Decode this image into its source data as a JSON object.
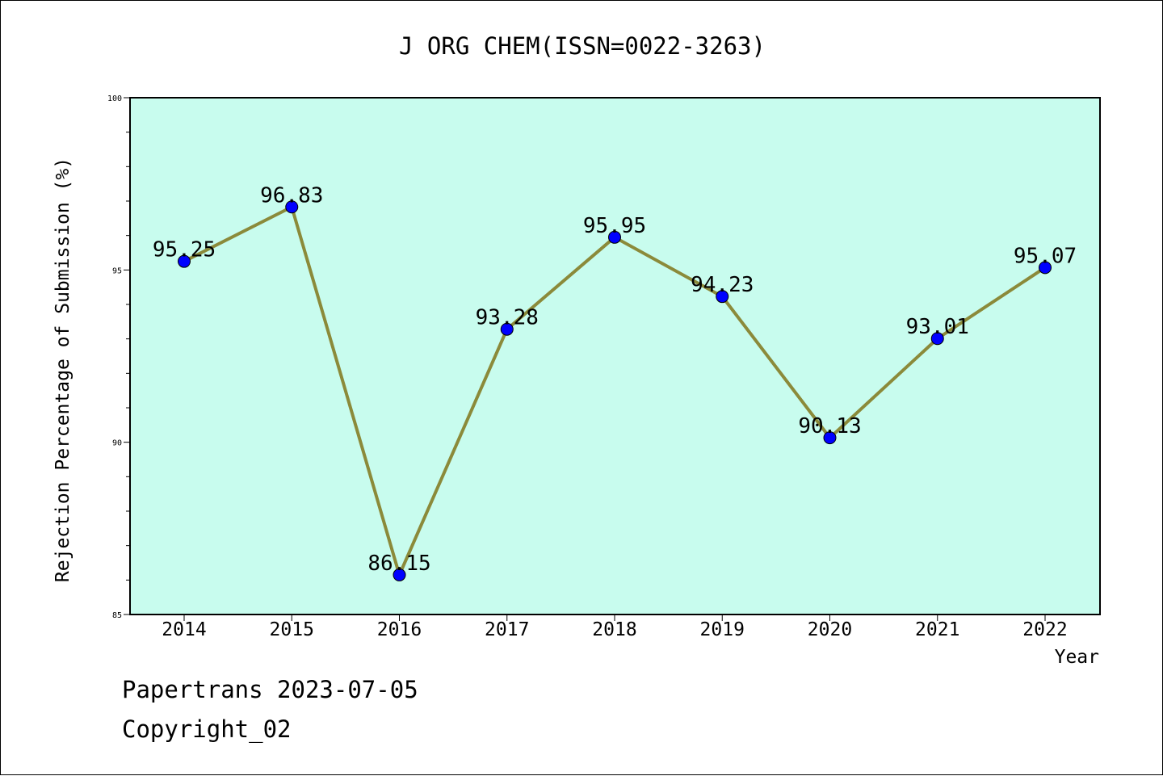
{
  "chart_data": {
    "type": "line",
    "title": "J ORG CHEM(ISSN=0022-3263)",
    "xlabel": "Year",
    "ylabel": "Rejection Percentage of Submission (%)",
    "categories": [
      "2014",
      "2015",
      "2016",
      "2017",
      "2018",
      "2019",
      "2020",
      "2021",
      "2022"
    ],
    "values": [
      95.25,
      96.83,
      86.15,
      93.28,
      95.95,
      94.23,
      90.13,
      93.01,
      95.07
    ],
    "data_labels": [
      "95.25",
      "96.83",
      "86.15",
      "93.28",
      "95.95",
      "94.23",
      "90.13",
      "93.01",
      "95.07"
    ],
    "ylim": [
      85,
      100
    ],
    "y_ticks": [
      85,
      90,
      95,
      100
    ],
    "y_tick_labels": [
      "85",
      "90",
      "95",
      "100"
    ],
    "grid": false,
    "colors": {
      "plot_background": "#c8fcee",
      "line": "#8b8a3a",
      "marker": "#0000ff"
    }
  },
  "footer": {
    "line1": "Papertrans 2023-07-05",
    "line2": "Copyright_02"
  }
}
